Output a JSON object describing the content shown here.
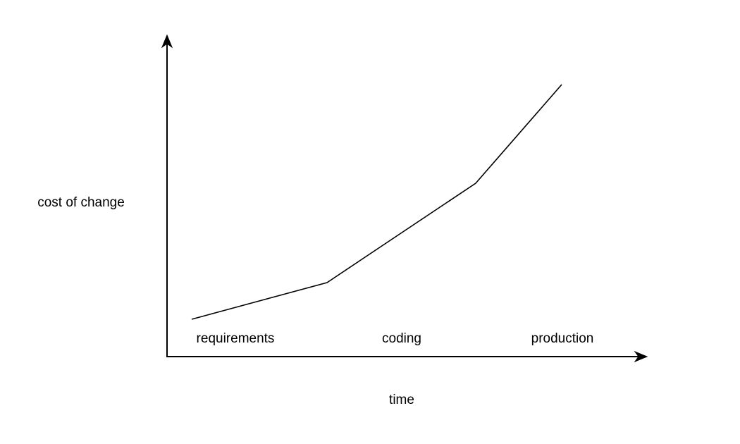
{
  "diagram": {
    "y_axis_label": "cost of change",
    "x_axis_label": "time",
    "phases": [
      {
        "label": "requirements"
      },
      {
        "label": "coding"
      },
      {
        "label": "production"
      }
    ],
    "curve_shape": "monotonically increasing piecewise-linear curve, rising ever more steeply from requirements through coding to production",
    "line_color": "#000000",
    "background_color": "#ffffff"
  }
}
